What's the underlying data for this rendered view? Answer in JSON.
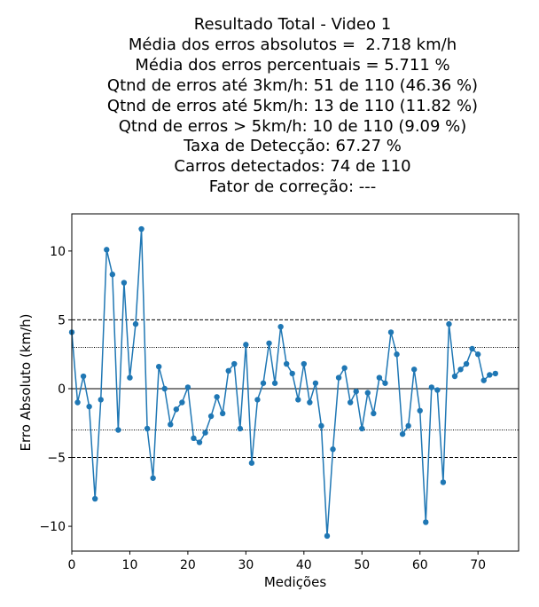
{
  "chart_data": {
    "type": "line",
    "title_lines": [
      "Resultado Total - Video 1",
      "",
      "Média dos erros absolutos =  2.718 km/h",
      "Média dos erros percentuais = 5.711 %",
      "Qtnd de erros até 3km/h: 51 de 110 (46.36 %)",
      "Qtnd de erros até 5km/h: 13 de 110 (11.82 %)",
      "Qtnd de erros > 5km/h: 10 de 110 (9.09 %)",
      "Taxa de Detecção: 67.27 %",
      "Carros detectados: 74 de 110",
      "Fator de correção: ---"
    ],
    "xlabel": "Medições",
    "ylabel": "Erro Absoluto (km/h)",
    "xlim": [
      0,
      77
    ],
    "ylim": [
      -11.8,
      12.7
    ],
    "xticks": [
      0,
      10,
      20,
      30,
      40,
      50,
      60,
      70
    ],
    "yticks": [
      -10,
      -5,
      0,
      5,
      10
    ],
    "reference_lines": [
      {
        "y": 5,
        "style": "dashed"
      },
      {
        "y": 3,
        "style": "dotted"
      },
      {
        "y": 0,
        "style": "solid"
      },
      {
        "y": -3,
        "style": "dotted"
      },
      {
        "y": -5,
        "style": "dashed"
      }
    ],
    "grid": false,
    "series_color": "#1f77b4",
    "series": [
      {
        "x": [
          0,
          1,
          2,
          3,
          4,
          5,
          6,
          7,
          8,
          9,
          10,
          11,
          12,
          13,
          14,
          15,
          16,
          17,
          18,
          19,
          20,
          21,
          22,
          23,
          24,
          25,
          26,
          27,
          28,
          29,
          30,
          31,
          32,
          33,
          34,
          35,
          36,
          37,
          38,
          39,
          40,
          41,
          42,
          43,
          44,
          45,
          46,
          47,
          48,
          49,
          50,
          51,
          52,
          53,
          54,
          55,
          56,
          57,
          58,
          59,
          60,
          61,
          62,
          63,
          64,
          65,
          66,
          67,
          68,
          69,
          70,
          71,
          72,
          73
        ],
        "values": [
          4.1,
          -1.0,
          0.9,
          -1.3,
          -8.0,
          -0.8,
          10.1,
          8.3,
          -3.0,
          7.7,
          0.8,
          4.7,
          11.6,
          -2.9,
          -6.5,
          1.6,
          0.0,
          -2.6,
          -1.5,
          -1.0,
          0.1,
          -3.6,
          -3.9,
          -3.2,
          -2.0,
          -0.6,
          -1.8,
          1.3,
          1.8,
          -2.9,
          3.2,
          -5.4,
          -0.8,
          0.4,
          3.3,
          0.4,
          4.5,
          1.8,
          1.1,
          -0.8,
          1.8,
          -1.0,
          0.4,
          -2.7,
          -10.7,
          -4.4,
          0.8,
          1.5,
          -1.0,
          -0.2,
          -2.9,
          -0.3,
          -1.8,
          0.8,
          0.4,
          4.1,
          2.5,
          -3.3,
          -2.7,
          1.4,
          -1.6,
          -9.7,
          0.1,
          -0.1,
          -6.8,
          4.7,
          0.9,
          1.4,
          1.8,
          2.9,
          2.5,
          0.6,
          1.0,
          1.1
        ]
      }
    ]
  }
}
